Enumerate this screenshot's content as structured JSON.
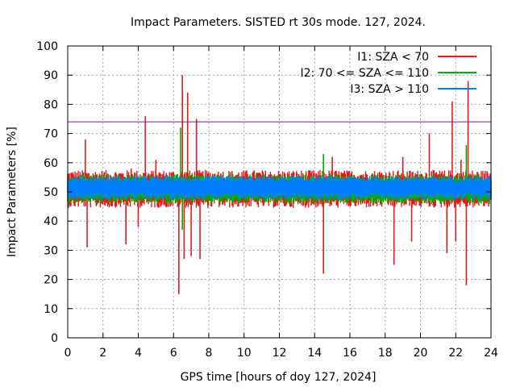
{
  "chart_data": {
    "type": "line",
    "title": "Impact Parameters. SISTED rt 30s mode. 127, 2024.",
    "xlabel": "GPS time [hours of doy 127, 2024]",
    "ylabel": "Impact Parameters [%]",
    "xlim": [
      0,
      24
    ],
    "ylim": [
      0,
      100
    ],
    "xticks": [
      0,
      2,
      4,
      6,
      8,
      10,
      12,
      14,
      16,
      18,
      20,
      22,
      24
    ],
    "yticks": [
      0,
      10,
      20,
      30,
      40,
      50,
      60,
      70,
      80,
      90,
      100
    ],
    "grid": true,
    "legend_position": "top-right",
    "threshold": {
      "value": 74,
      "color": "#a000a0"
    },
    "series": [
      {
        "name": "I1: SZA < 70",
        "color": "#e41a1c",
        "center": 51,
        "spread": 6.5,
        "x": [
          0,
          0.5,
          1.0,
          1.1,
          1.5,
          2.5,
          3.0,
          3.3,
          3.6,
          3.8,
          4.0,
          4.4,
          4.5,
          5.0,
          5.5,
          6.0,
          6.3,
          6.5,
          6.6,
          6.8,
          7.0,
          7.3,
          7.5,
          8.0,
          9.0,
          10.0,
          11.0,
          12.0,
          13.0,
          14.0,
          14.5,
          15.0,
          15.5,
          16.0,
          17.0,
          18.0,
          18.5,
          19.0,
          19.5,
          20.0,
          20.5,
          21.0,
          21.5,
          21.8,
          22.0,
          22.3,
          22.6,
          22.7,
          23.0,
          23.5,
          24.0
        ],
        "y": [
          51,
          50,
          68,
          31,
          52,
          51,
          52,
          32,
          58,
          50,
          38,
          76,
          51,
          61,
          52,
          55,
          15,
          90,
          27,
          84,
          28,
          75,
          27,
          52,
          51,
          52,
          51,
          50,
          52,
          51,
          22,
          62,
          53,
          52,
          52,
          51,
          25,
          62,
          33,
          52,
          70,
          51,
          29,
          81,
          33,
          61,
          18,
          88,
          52,
          52,
          51
        ]
      },
      {
        "name": "I2: 70 <= SZA <= 110",
        "color": "#00b000",
        "center": 51,
        "spread": 5,
        "x": [
          0,
          1,
          2,
          3,
          4,
          5,
          6,
          6.4,
          6.5,
          6.7,
          7,
          8,
          9,
          10,
          11,
          12,
          13,
          14,
          14.5,
          15,
          16,
          17,
          18,
          19,
          20,
          21,
          22,
          22.6,
          23,
          24
        ],
        "y": [
          52,
          51,
          52,
          51,
          52,
          51,
          52,
          72,
          37,
          55,
          52,
          51,
          52,
          51,
          52,
          52,
          51,
          52,
          63,
          52,
          51,
          52,
          51,
          52,
          51,
          52,
          51,
          66,
          52,
          51
        ]
      },
      {
        "name": "I3: SZA > 110",
        "color": "#0080ff",
        "center": 51.5,
        "spread": 4,
        "x": [
          0,
          2,
          4,
          6,
          8,
          10,
          12,
          14,
          16,
          18,
          20,
          22,
          24
        ],
        "y": [
          51.5,
          51.5,
          51.5,
          51.5,
          51.5,
          51.5,
          51.5,
          51.5,
          51.5,
          51.5,
          51.5,
          51.5,
          51.5
        ]
      }
    ]
  }
}
